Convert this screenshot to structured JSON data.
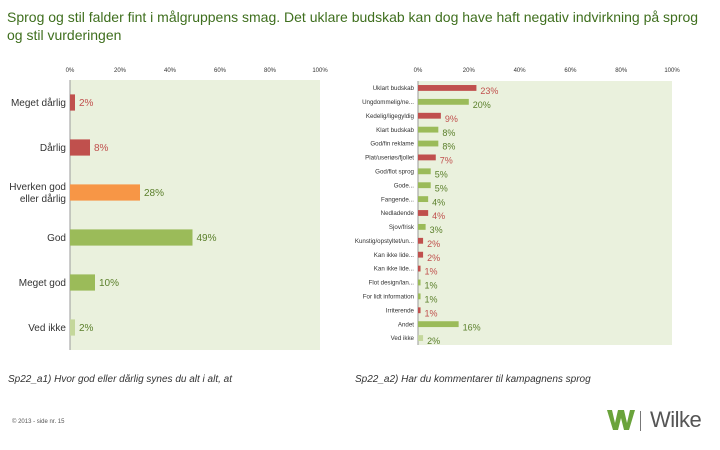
{
  "title": "Sprog og stil falder fint i målgruppens smag.  Det uklare budskab kan dog have haft negativ indvirkning på sprog og stil vurderingen",
  "colors": {
    "green": "#9bbb59",
    "red": "#c0504d",
    "orange": "#f79646",
    "plot_bg": "#eaf1dd",
    "title": "#3f6f1e"
  },
  "chart_data": [
    {
      "type": "bar",
      "orientation": "horizontal",
      "categories": [
        "Meget dårlig",
        "Dårlig",
        "Hverken god eller dårlig",
        "God",
        "Meget god",
        "Ved ikke"
      ],
      "values": [
        2,
        8,
        28,
        49,
        10,
        2
      ],
      "value_labels": [
        "2%",
        "8%",
        "28%",
        "49%",
        "10%",
        "2%"
      ],
      "bar_colors": [
        "#c0504d",
        "#c0504d",
        "#f79646",
        "#9bbb59",
        "#9bbb59",
        "#c4d79b"
      ],
      "xticks": [
        "0%",
        "20%",
        "40%",
        "60%",
        "80%",
        "100%"
      ],
      "xlim": [
        0,
        100
      ],
      "caption": "Sp22_a1) Hvor god eller dårlig synes du alt i alt, at"
    },
    {
      "type": "bar",
      "orientation": "horizontal",
      "categories": [
        "Uklart budskab",
        "Ungdommelig/ne...",
        "Kedelig/ligegyldig",
        "Klart budskab",
        "God/fin reklame",
        "Plat/useriøs/fjollet",
        "God/flot sprog",
        "Gode...",
        "Fangende...",
        "Nedladende",
        "Sjov/frisk",
        "Kunstig/opstyltet/un...",
        "Kan ikke lide...",
        "Kan ikke lide...",
        "Flot design/lan...",
        "For lidt information",
        "Irriterende",
        "Andet",
        "Ved ikke"
      ],
      "values": [
        23,
        20,
        9,
        8,
        8,
        7,
        5,
        5,
        4,
        4,
        3,
        2,
        2,
        1,
        1,
        1,
        1,
        16,
        2
      ],
      "value_labels": [
        "23%",
        "20%",
        "9%",
        "8%",
        "8%",
        "7%",
        "5%",
        "5%",
        "4%",
        "4%",
        "3%",
        "2%",
        "2%",
        "1%",
        "1%",
        "1%",
        "1%",
        "16%",
        "2%"
      ],
      "bar_colors": [
        "#c0504d",
        "#9bbb59",
        "#c0504d",
        "#9bbb59",
        "#9bbb59",
        "#c0504d",
        "#9bbb59",
        "#9bbb59",
        "#9bbb59",
        "#c0504d",
        "#9bbb59",
        "#c0504d",
        "#c0504d",
        "#c0504d",
        "#9bbb59",
        "#9bbb59",
        "#c0504d",
        "#9bbb59",
        "#c4d79b"
      ],
      "xticks": [
        "0%",
        "20%",
        "40%",
        "60%",
        "80%",
        "100%"
      ],
      "xlim": [
        0,
        100
      ],
      "caption": "Sp22_a2) Har du kommentarer til kampagnens sprog"
    }
  ],
  "footer": "© 2013 - side nr. 15",
  "logo": {
    "text": "Wilke",
    "mark": "W"
  }
}
